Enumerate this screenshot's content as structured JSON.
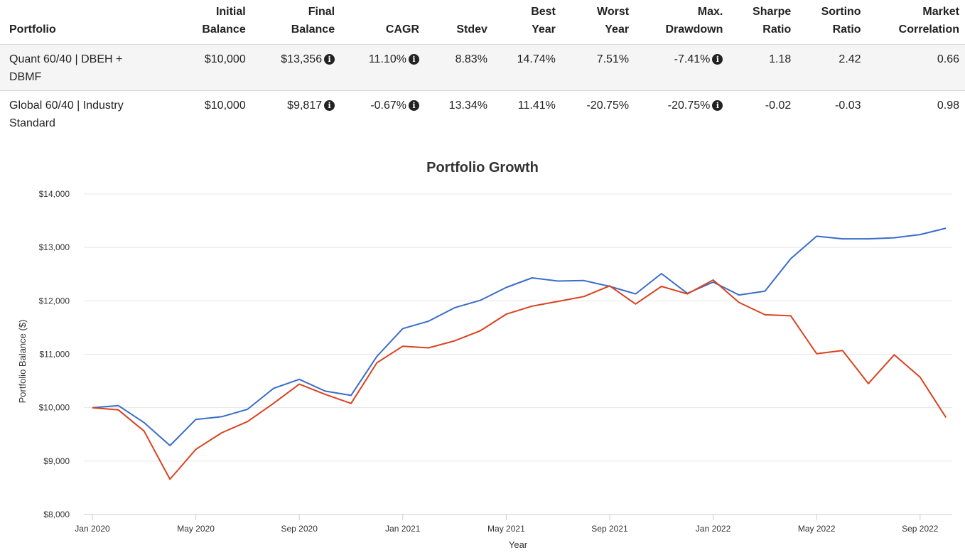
{
  "table": {
    "headers": [
      {
        "l1": "",
        "l2": "Portfolio"
      },
      {
        "l1": "Initial",
        "l2": "Balance"
      },
      {
        "l1": "Final",
        "l2": "Balance"
      },
      {
        "l1": "",
        "l2": "CAGR"
      },
      {
        "l1": "",
        "l2": "Stdev"
      },
      {
        "l1": "Best",
        "l2": "Year"
      },
      {
        "l1": "Worst",
        "l2": "Year"
      },
      {
        "l1": "Max.",
        "l2": "Drawdown"
      },
      {
        "l1": "Sharpe",
        "l2": "Ratio"
      },
      {
        "l1": "Sortino",
        "l2": "Ratio"
      },
      {
        "l1": "Market",
        "l2": "Correlation"
      }
    ],
    "rows": [
      {
        "portfolio_l1": "Quant 60/40 | DBEH +",
        "portfolio_l2": "DBMF",
        "initial_balance": "$10,000",
        "final_balance": "$13,356",
        "cagr": "11.10%",
        "stdev": "8.83%",
        "best_year": "14.74%",
        "worst_year": "7.51%",
        "max_drawdown": "-7.41%",
        "sharpe_ratio": "1.18",
        "sortino_ratio": "2.42",
        "market_correlation": "0.66"
      },
      {
        "portfolio_l1": "Global 60/40 | Industry",
        "portfolio_l2": "Standard",
        "initial_balance": "$10,000",
        "final_balance": "$9,817",
        "cagr": "-0.67%",
        "stdev": "13.34%",
        "best_year": "11.41%",
        "worst_year": "-20.75%",
        "max_drawdown": "-20.75%",
        "sharpe_ratio": "-0.02",
        "sortino_ratio": "-0.03",
        "market_correlation": "0.98"
      }
    ],
    "info_icon": "info-circle-icon",
    "info_glyph": "i"
  },
  "chart_data": {
    "type": "line",
    "title": "Portfolio Growth",
    "xlabel": "Year",
    "ylabel": "Portfolio Balance ($)",
    "ylim": [
      8000,
      14000
    ],
    "yticks": [
      8000,
      9000,
      10000,
      11000,
      12000,
      13000,
      14000
    ],
    "ytick_labels": [
      "$8,000",
      "$9,000",
      "$10,000",
      "$11,000",
      "$12,000",
      "$13,000",
      "$14,000"
    ],
    "x": [
      "2020-01",
      "2020-02",
      "2020-03",
      "2020-04",
      "2020-05",
      "2020-06",
      "2020-07",
      "2020-08",
      "2020-09",
      "2020-10",
      "2020-11",
      "2020-12",
      "2021-01",
      "2021-02",
      "2021-03",
      "2021-04",
      "2021-05",
      "2021-06",
      "2021-07",
      "2021-08",
      "2021-09",
      "2021-10",
      "2021-11",
      "2021-12",
      "2022-01",
      "2022-02",
      "2022-03",
      "2022-04",
      "2022-05",
      "2022-06",
      "2022-07",
      "2022-08",
      "2022-09",
      "2022-10"
    ],
    "xticks": [
      "2020-01",
      "2020-05",
      "2020-09",
      "2021-01",
      "2021-05",
      "2021-09",
      "2022-01",
      "2022-05",
      "2022-09"
    ],
    "xtick_labels": [
      "Jan 2020",
      "May 2020",
      "Sep 2020",
      "Jan 2021",
      "May 2021",
      "Sep 2021",
      "Jan 2022",
      "May 2022",
      "Sep 2022"
    ],
    "grid": true,
    "series": [
      {
        "color": "#3a6cc9",
        "values": [
          10000,
          10040,
          9720,
          9290,
          9780,
          9830,
          9970,
          10360,
          10530,
          10310,
          10230,
          10960,
          11480,
          11620,
          11870,
          12010,
          12250,
          12430,
          12370,
          12380,
          12270,
          12130,
          12510,
          12140,
          12350,
          12110,
          12180,
          12790,
          13210,
          13160,
          13160,
          13180,
          13240,
          13360
        ]
      },
      {
        "color": "#d8431f",
        "values": [
          10000,
          9960,
          9560,
          8660,
          9220,
          9530,
          9740,
          10080,
          10440,
          10250,
          10080,
          10840,
          11150,
          11120,
          11250,
          11440,
          11750,
          11900,
          11990,
          12080,
          12280,
          11940,
          12270,
          12130,
          12390,
          11970,
          11740,
          11720,
          11010,
          11070,
          10450,
          10990,
          10570,
          9817
        ]
      }
    ]
  }
}
